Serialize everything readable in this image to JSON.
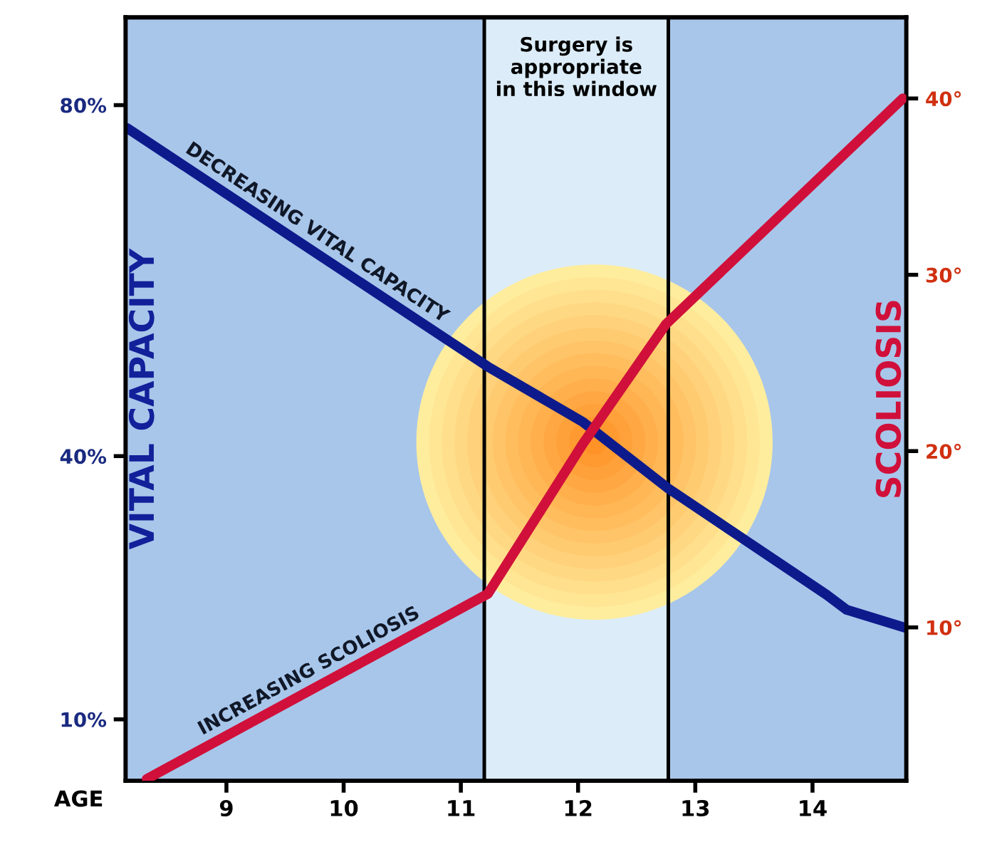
{
  "chart_data": {
    "type": "line",
    "xlabel": "AGE",
    "ylabel": "VITAL CAPACITY",
    "y2label": "SCOLIOSIS",
    "xlim": [
      8.14,
      14.8
    ],
    "xticks": [
      9,
      10,
      11,
      12,
      13,
      14
    ],
    "ylim": [
      3,
      90
    ],
    "yticks": [
      {
        "value": 10,
        "label": "10%"
      },
      {
        "value": 40,
        "label": "40%"
      },
      {
        "value": 80,
        "label": "80%"
      }
    ],
    "y2lim": [
      1.3,
      44.6
    ],
    "y2ticks": [
      {
        "value": 10,
        "label": "10°"
      },
      {
        "value": 20,
        "label": "20°"
      },
      {
        "value": 30,
        "label": "30°"
      },
      {
        "value": 40,
        "label": "40°"
      }
    ],
    "series": [
      {
        "name": "DECREASING VITAL CAPACITY",
        "color": "#0d1a8c",
        "x": [
          8.15,
          11.23,
          12.04,
          12.77,
          14.12,
          14.29,
          14.8
        ],
        "values": [
          77.4,
          50.2,
          43.9,
          36.3,
          24.2,
          22.5,
          20.4
        ]
      },
      {
        "name": "INCREASING SCOLIOSIS",
        "color": "#d0103a",
        "axis": "y2",
        "x": [
          8.32,
          11.23,
          12.04,
          12.75,
          14.77
        ],
        "values": [
          1.4,
          11.9,
          20.4,
          27.2,
          40
        ]
      }
    ],
    "bands": [
      {
        "axis": "x",
        "from": 11.2,
        "to": 12.77,
        "label": "Surgery is\nappropriate\nin this window",
        "color": "#dcedf9"
      }
    ],
    "ref_lines": [
      {
        "axis": "x",
        "value": 11.2,
        "color": "#000000"
      },
      {
        "axis": "x",
        "value": 12.77,
        "color": "#000000"
      }
    ],
    "grid": false,
    "legend": false,
    "marker": "none",
    "line_style": "solid"
  }
}
